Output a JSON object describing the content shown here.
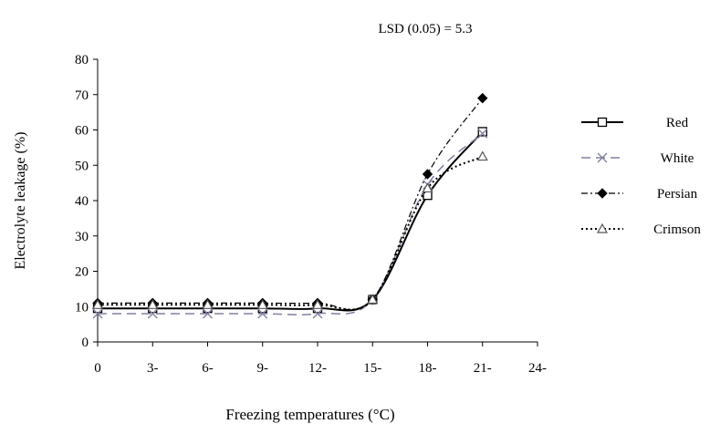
{
  "chart_data": {
    "type": "line",
    "title": "",
    "annotation": "LSD (0.05) = 5.3",
    "xlabel": "Freezing temperatures (°C)",
    "ylabel": "Electrolyte leakage (%)",
    "x_tick_labels": [
      "0",
      "3-",
      "6-",
      "9-",
      "12-",
      "15-",
      "18-",
      "21-",
      "24-"
    ],
    "y_tick_labels": [
      "0",
      "10",
      "20",
      "30",
      "40",
      "50",
      "60",
      "70",
      "80"
    ],
    "xlim": [
      0,
      -24
    ],
    "ylim": [
      0,
      80
    ],
    "grid": false,
    "legend_position": "right",
    "x": [
      0,
      -3,
      -6,
      -9,
      -12,
      -15,
      -18,
      -21
    ],
    "series": [
      {
        "name": "Red",
        "marker": "square",
        "line": "solid",
        "color": "#000000",
        "values": [
          9.5,
          9.5,
          9.5,
          9.5,
          9.5,
          12,
          41.5,
          59.5
        ]
      },
      {
        "name": "White",
        "marker": "x",
        "line": "dashed",
        "color": "#8080a0",
        "values": [
          8,
          8,
          8,
          8,
          8,
          12,
          44.5,
          59
        ]
      },
      {
        "name": "Persian",
        "marker": "diamond",
        "line": "dash-dot",
        "color": "#000000",
        "values": [
          11,
          11,
          11,
          11,
          11,
          12,
          47.5,
          69
        ]
      },
      {
        "name": "Crimson",
        "marker": "triangle",
        "line": "dotted",
        "color": "#000000",
        "values": [
          10.5,
          10.5,
          10.5,
          10.5,
          10.5,
          12,
          43.5,
          52.5
        ]
      }
    ]
  }
}
